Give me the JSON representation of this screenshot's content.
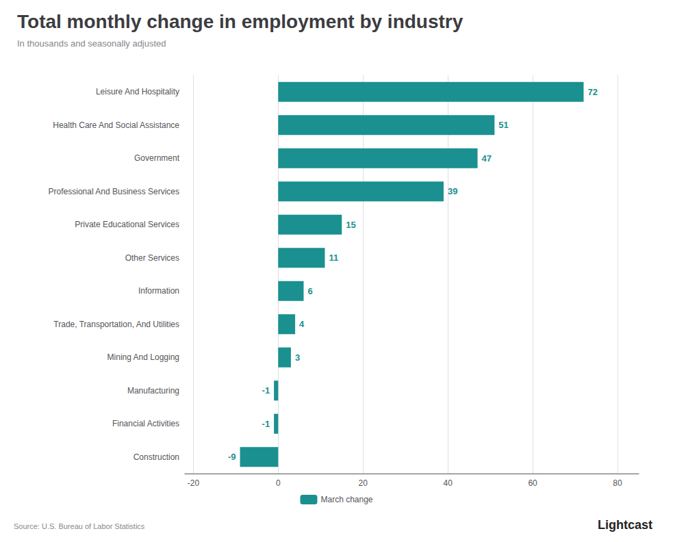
{
  "chart_data": {
    "type": "bar",
    "orientation": "horizontal",
    "title": "Total monthly change in employment by industry",
    "subtitle": "In thousands and seasonally adjusted",
    "source": "Source: U.S. Bureau of Labor Statistics",
    "annotations": [
      "Lightcast"
    ],
    "categories": [
      "Leisure And Hospitality",
      "Health Care And Social Assistance",
      "Government",
      "Professional And Business Services",
      "Private Educational Services",
      "Other Services",
      "Information",
      "Trade, Transportation, And Utilities",
      "Mining And Logging",
      "Manufacturing",
      "Financial Activities",
      "Construction"
    ],
    "series": [
      {
        "name": "March change",
        "color": "#1a9090",
        "values": [
          72,
          51,
          47,
          39,
          15,
          11,
          6,
          4,
          3,
          -1,
          -1,
          -9
        ]
      }
    ],
    "xlim": [
      -22,
      85
    ],
    "xticks": [
      -20,
      0,
      20,
      40,
      60,
      80
    ],
    "grid": true,
    "legend": "bottom",
    "data_labels": true
  }
}
